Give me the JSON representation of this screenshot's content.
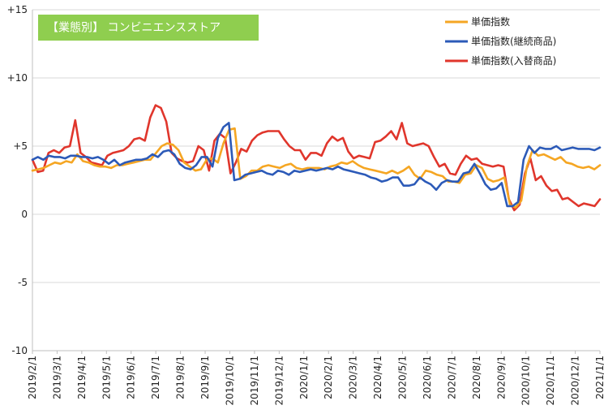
{
  "chart_data": {
    "type": "line",
    "title": "【業態別】 コンビニエンスストア",
    "title_bg_color": "#8fce4f",
    "ylim": [
      -10,
      15
    ],
    "y_ticks": [
      {
        "value": 15,
        "label": "+15"
      },
      {
        "value": 10,
        "label": "+10"
      },
      {
        "value": 5,
        "label": "+5"
      },
      {
        "value": 0,
        "label": "0"
      },
      {
        "value": -5,
        "label": "-5"
      },
      {
        "value": -10,
        "label": "-10"
      }
    ],
    "x_start": "2019/2/1",
    "x_end": "2021/1/1",
    "x_tick_labels": [
      "2019/2/1",
      "2019/3/1",
      "2019/4/1",
      "2019/5/1",
      "2019/6/1",
      "2019/7/1",
      "2019/8/1",
      "2019/9/1",
      "2019/10/1",
      "2019/11/1",
      "2019/12/1",
      "2020/1/1",
      "2020/2/1",
      "2020/3/1",
      "2020/4/1",
      "2020/5/1",
      "2020/6/1",
      "2020/7/1",
      "2020/8/1",
      "2020/9/1",
      "2020/10/1",
      "2020/11/1",
      "2020/12/1",
      "2021/1/1"
    ],
    "grid": "horizontal",
    "legend_position": "top-right",
    "series": [
      {
        "name": "単価指数",
        "color": "#f5a623",
        "values": [
          3.2,
          3.3,
          3.4,
          3.6,
          3.8,
          3.7,
          3.9,
          3.8,
          4.4,
          3.9,
          3.8,
          3.6,
          3.5,
          3.5,
          3.4,
          3.6,
          3.6,
          3.7,
          3.8,
          3.9,
          4.0,
          4.0,
          4.5,
          5.0,
          5.2,
          5.1,
          4.7,
          3.8,
          3.5,
          3.2,
          3.3,
          4.0,
          4.1,
          3.8,
          5.2,
          6.2,
          6.3,
          2.6,
          2.8,
          3.2,
          3.2,
          3.5,
          3.6,
          3.5,
          3.4,
          3.6,
          3.7,
          3.4,
          3.3,
          3.4,
          3.4,
          3.4,
          3.3,
          3.5,
          3.6,
          3.8,
          3.7,
          3.9,
          3.6,
          3.4,
          3.3,
          3.2,
          3.1,
          3.0,
          3.2,
          3.0,
          3.2,
          3.5,
          2.9,
          2.6,
          3.2,
          3.1,
          2.9,
          2.8,
          2.4,
          2.4,
          2.3,
          2.9,
          3.0,
          3.6,
          3.4,
          2.6,
          2.4,
          2.5,
          2.7,
          0.7,
          0.5,
          1.0,
          3.5,
          4.7,
          4.3,
          4.4,
          4.2,
          4.0,
          4.2,
          3.8,
          3.7,
          3.5,
          3.4,
          3.5,
          3.3,
          3.6
        ]
      },
      {
        "name": "単価指数(継続商品)",
        "color": "#2c5ab8",
        "values": [
          4.0,
          4.2,
          4.0,
          4.3,
          4.2,
          4.2,
          4.1,
          4.3,
          4.3,
          4.2,
          4.2,
          4.1,
          4.2,
          4.0,
          3.7,
          4.0,
          3.6,
          3.8,
          3.9,
          4.0,
          4.0,
          4.1,
          4.4,
          4.2,
          4.6,
          4.7,
          4.4,
          3.7,
          3.4,
          3.3,
          3.6,
          4.2,
          4.2,
          3.5,
          5.6,
          6.4,
          6.7,
          2.5,
          2.6,
          2.9,
          3.0,
          3.1,
          3.2,
          3.0,
          2.9,
          3.2,
          3.1,
          2.9,
          3.2,
          3.1,
          3.2,
          3.3,
          3.2,
          3.3,
          3.4,
          3.3,
          3.5,
          3.3,
          3.2,
          3.1,
          3.0,
          2.9,
          2.7,
          2.6,
          2.4,
          2.5,
          2.7,
          2.7,
          2.1,
          2.1,
          2.2,
          2.7,
          2.4,
          2.2,
          1.8,
          2.3,
          2.5,
          2.4,
          2.4,
          3.0,
          3.1,
          3.7,
          3.0,
          2.2,
          1.8,
          1.9,
          2.3,
          0.6,
          0.6,
          0.9,
          4.0,
          5.0,
          4.5,
          4.9,
          4.8,
          4.8,
          5.0,
          4.7,
          4.8,
          4.9,
          4.8,
          4.8,
          4.8,
          4.7,
          4.9
        ]
      },
      {
        "name": "単価指数(入替商品)",
        "color": "#e0362c",
        "values": [
          4.0,
          3.1,
          3.2,
          4.5,
          4.7,
          4.5,
          4.9,
          5.0,
          6.9,
          4.5,
          4.2,
          3.8,
          3.7,
          3.6,
          4.3,
          4.5,
          4.6,
          4.7,
          5.0,
          5.5,
          5.6,
          5.4,
          7.1,
          8.0,
          7.8,
          6.8,
          4.5,
          4.1,
          3.9,
          3.8,
          3.9,
          5.0,
          4.7,
          3.2,
          5.4,
          5.9,
          5.6,
          3.0,
          3.8,
          4.8,
          4.6,
          5.4,
          5.8,
          6.0,
          6.1,
          6.1,
          6.1,
          5.5,
          5.0,
          4.7,
          4.7,
          4.0,
          4.5,
          4.5,
          4.3,
          5.2,
          5.7,
          5.4,
          5.6,
          4.6,
          4.1,
          4.3,
          4.2,
          4.1,
          5.3,
          5.4,
          5.7,
          6.1,
          5.5,
          6.7,
          5.2,
          5.0,
          5.1,
          5.2,
          5.0,
          4.2,
          3.5,
          3.7,
          3.0,
          2.9,
          3.7,
          4.3,
          4.0,
          4.1,
          3.7,
          3.6,
          3.5,
          3.6,
          3.5,
          1.1,
          0.3,
          0.7,
          3.0,
          4.1,
          2.5,
          2.8,
          2.1,
          1.7,
          1.8,
          1.1,
          1.2,
          0.9,
          0.6,
          0.8,
          0.7,
          0.6,
          1.1
        ]
      }
    ]
  }
}
